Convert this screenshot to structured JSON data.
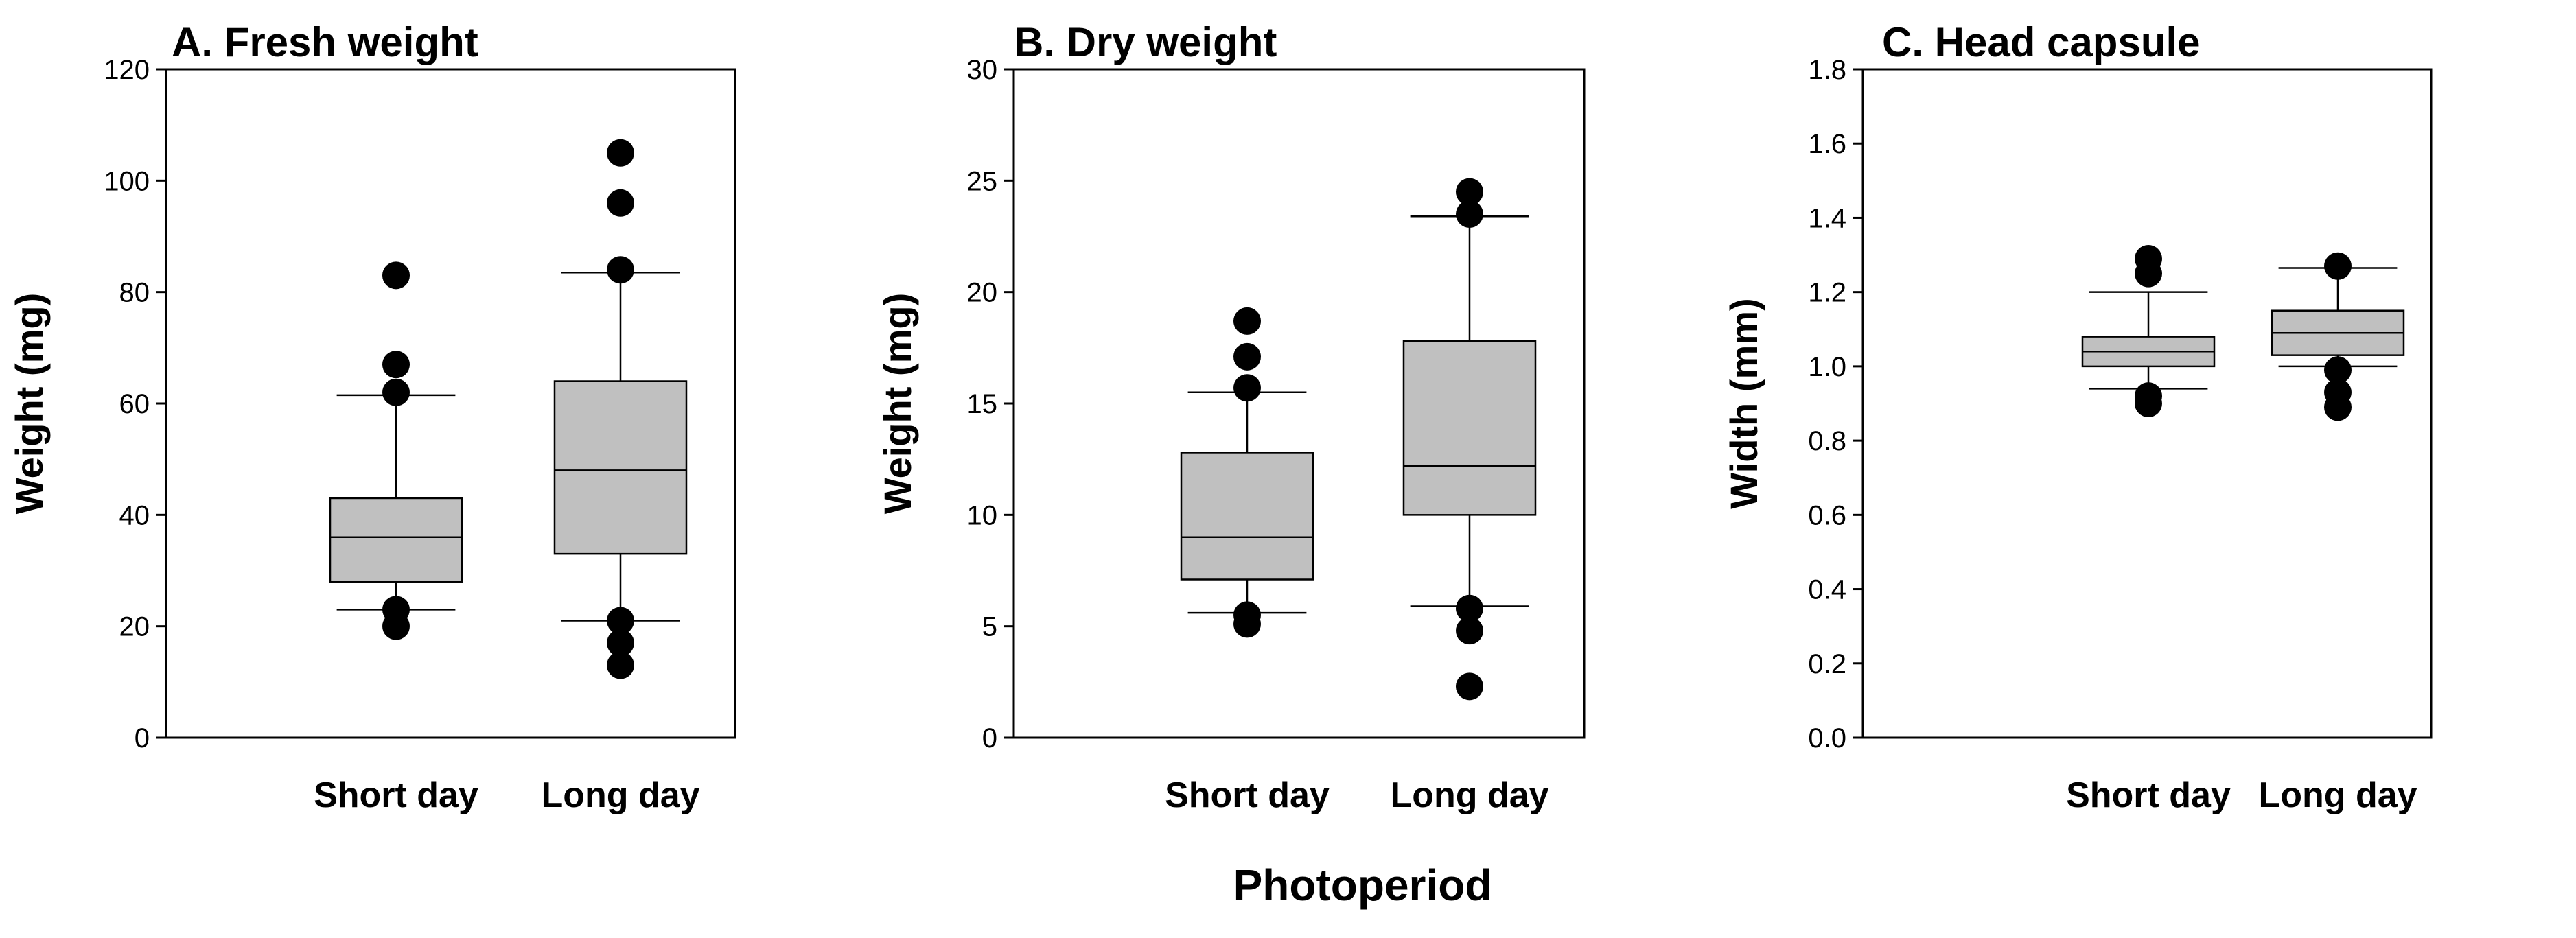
{
  "figure": {
    "x_label": "Photoperiod"
  },
  "chart_data": [
    {
      "type": "box",
      "title": "A. Fresh weight",
      "ylabel": "Weight (mg)",
      "xlabel": "",
      "ylim": [
        0,
        120
      ],
      "yticks": [
        0,
        20,
        40,
        60,
        80,
        100,
        120
      ],
      "tick_labels": [
        "0",
        "20",
        "40",
        "60",
        "80",
        "100",
        "120"
      ],
      "categories": [
        "Short day",
        "Long day"
      ],
      "box_color": "#c0c0c0",
      "series": [
        {
          "name": "Short day",
          "whisker_low": 23,
          "q1": 28,
          "median": 36,
          "q3": 43,
          "whisker_high": 61.5,
          "outliers": [
            20,
            23,
            62,
            67,
            83
          ]
        },
        {
          "name": "Long day",
          "whisker_low": 21,
          "q1": 33,
          "median": 48,
          "q3": 64,
          "whisker_high": 83.5,
          "outliers": [
            13,
            17,
            21,
            84,
            96,
            105
          ]
        }
      ]
    },
    {
      "type": "box",
      "title": "B. Dry weight",
      "ylabel": "Weight (mg)",
      "xlabel": "",
      "ylim": [
        0,
        30
      ],
      "yticks": [
        0,
        5,
        10,
        15,
        20,
        25,
        30
      ],
      "tick_labels": [
        "0",
        "5",
        "10",
        "15",
        "20",
        "25",
        "30"
      ],
      "categories": [
        "Short day",
        "Long day"
      ],
      "box_color": "#c0c0c0",
      "series": [
        {
          "name": "Short day",
          "whisker_low": 5.6,
          "q1": 7.1,
          "median": 9.0,
          "q3": 12.8,
          "whisker_high": 15.5,
          "outliers": [
            5.1,
            5.5,
            15.7,
            17.1,
            18.7
          ]
        },
        {
          "name": "Long day",
          "whisker_low": 5.9,
          "q1": 10.0,
          "median": 12.2,
          "q3": 17.8,
          "whisker_high": 23.4,
          "outliers": [
            2.3,
            4.8,
            5.8,
            23.5,
            24.5
          ]
        }
      ]
    },
    {
      "type": "box",
      "title": "C. Head capsule",
      "ylabel": "Width (mm)",
      "xlabel": "",
      "ylim": [
        0,
        1.8
      ],
      "yticks": [
        0,
        0.2,
        0.4,
        0.6,
        0.8,
        1.0,
        1.2,
        1.4,
        1.6,
        1.8
      ],
      "tick_labels": [
        "0.0",
        "0.2",
        "0.4",
        "0.6",
        "0.8",
        "1.0",
        "1.2",
        "1.4",
        "1.6",
        "1.8"
      ],
      "categories": [
        "Short day",
        "Long day"
      ],
      "box_color": "#c0c0c0",
      "series": [
        {
          "name": "Short day",
          "whisker_low": 0.94,
          "q1": 1.0,
          "median": 1.04,
          "q3": 1.08,
          "whisker_high": 1.2,
          "outliers": [
            0.9,
            0.92,
            1.25,
            1.29
          ]
        },
        {
          "name": "Long day",
          "whisker_low": 1.0,
          "q1": 1.03,
          "median": 1.09,
          "q3": 1.15,
          "whisker_high": 1.265,
          "outliers": [
            0.89,
            0.93,
            0.99,
            1.27
          ]
        }
      ]
    }
  ]
}
